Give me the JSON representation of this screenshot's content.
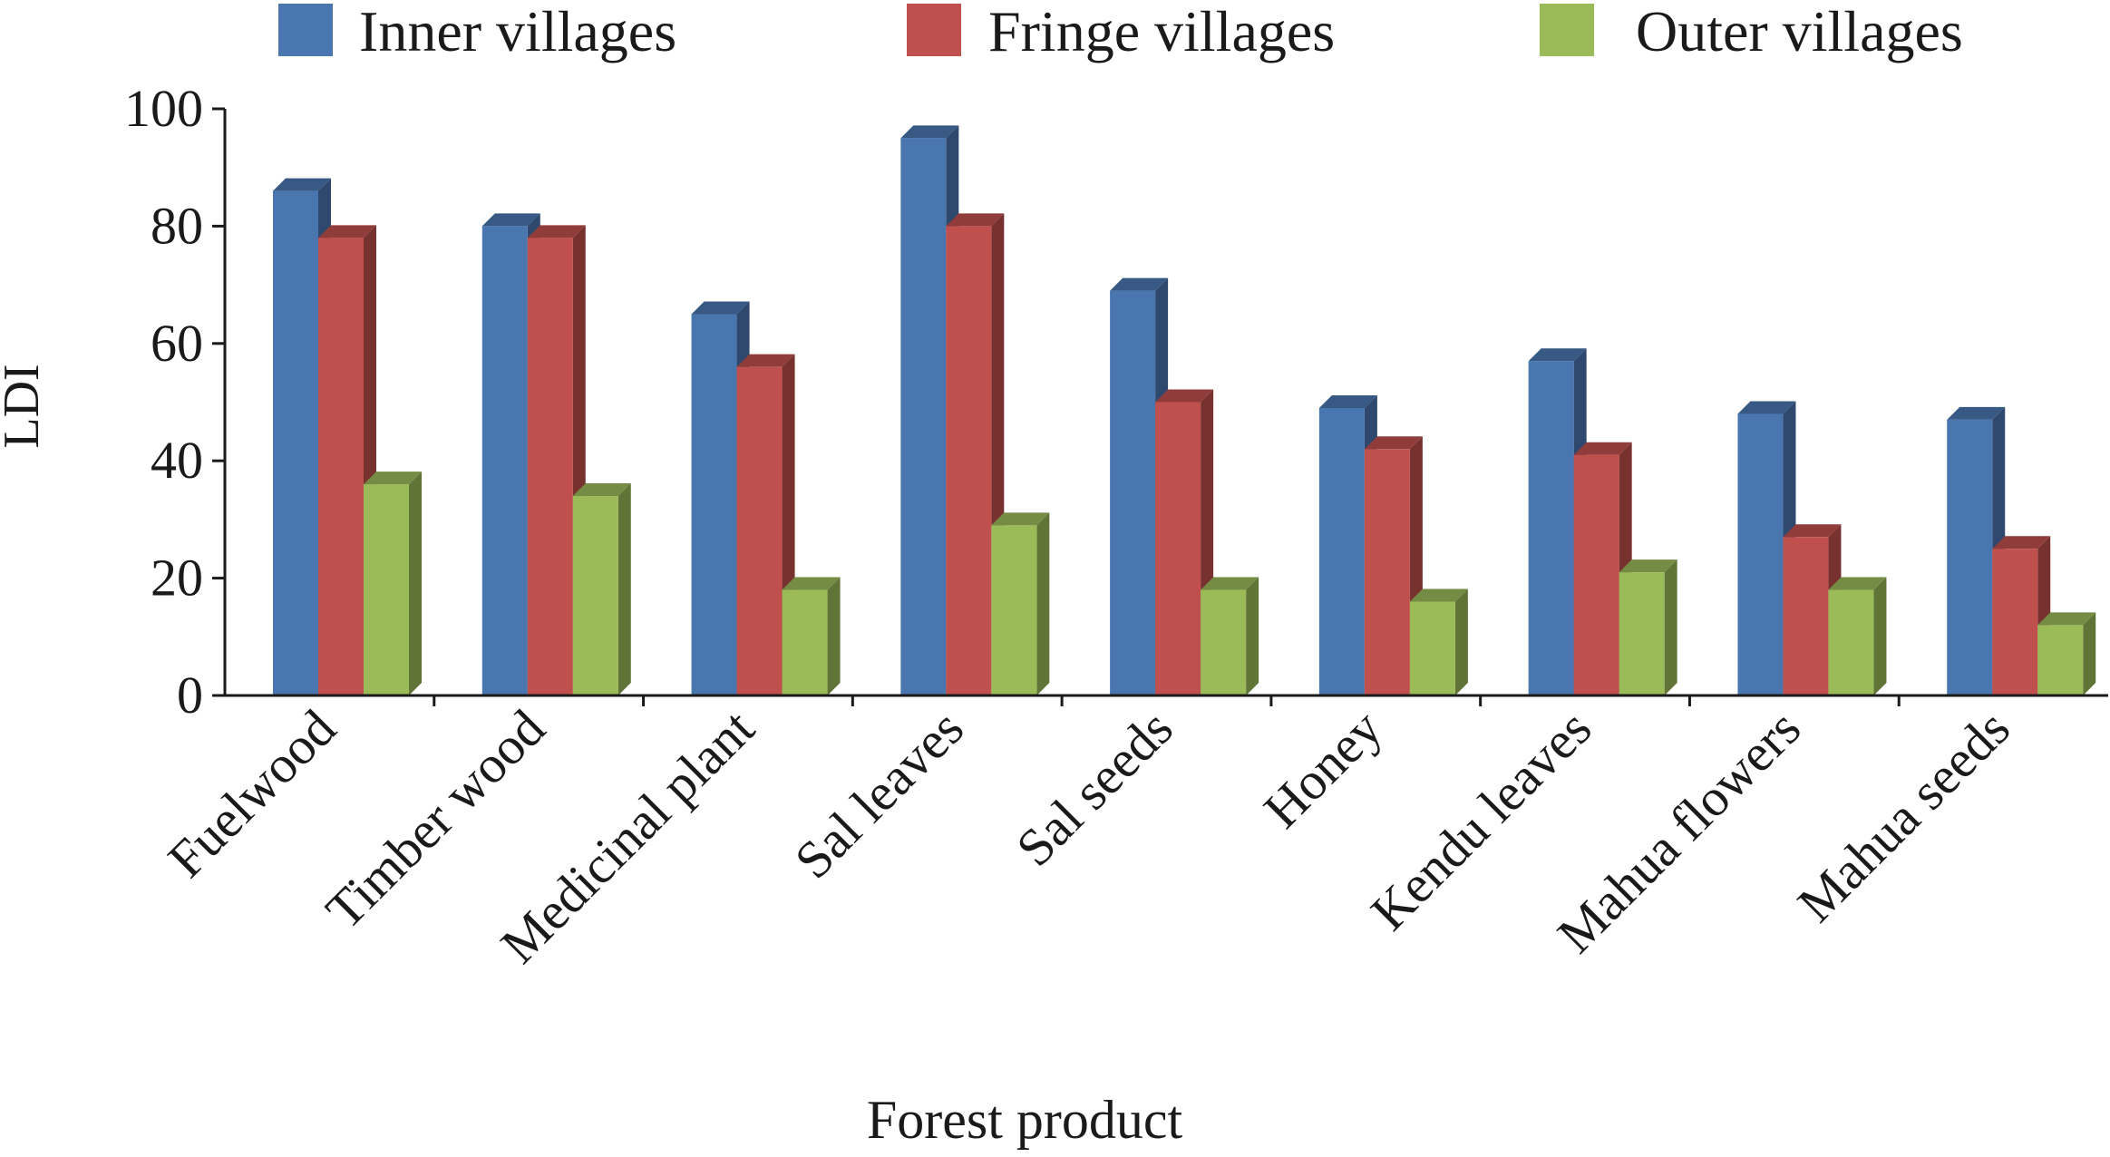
{
  "chart_data": {
    "type": "bar",
    "xlabel": "Forest product",
    "ylabel": "LDI",
    "ylim": [
      0,
      100
    ],
    "yticks": [
      0,
      20,
      40,
      60,
      80,
      100
    ],
    "grid": false,
    "legend_position": "top",
    "categories": [
      "Fuelwood",
      "Timber wood",
      "Medicinal plant",
      "Sal leaves",
      "Sal seeds",
      "Honey",
      "Kendu leaves",
      "Mahua flowers",
      "Mahua seeds"
    ],
    "series": [
      {
        "name": "Inner villages",
        "color": "#4a76b0",
        "values": [
          86,
          80,
          65,
          95,
          69,
          49,
          57,
          48,
          47
        ]
      },
      {
        "name": "Fringe villages",
        "color": "#c0504d",
        "values": [
          78,
          78,
          56,
          80,
          50,
          42,
          41,
          27,
          25
        ]
      },
      {
        "name": "Outer villages",
        "color": "#9bbb59",
        "values": [
          36,
          34,
          18,
          29,
          18,
          16,
          21,
          18,
          12
        ]
      }
    ]
  }
}
